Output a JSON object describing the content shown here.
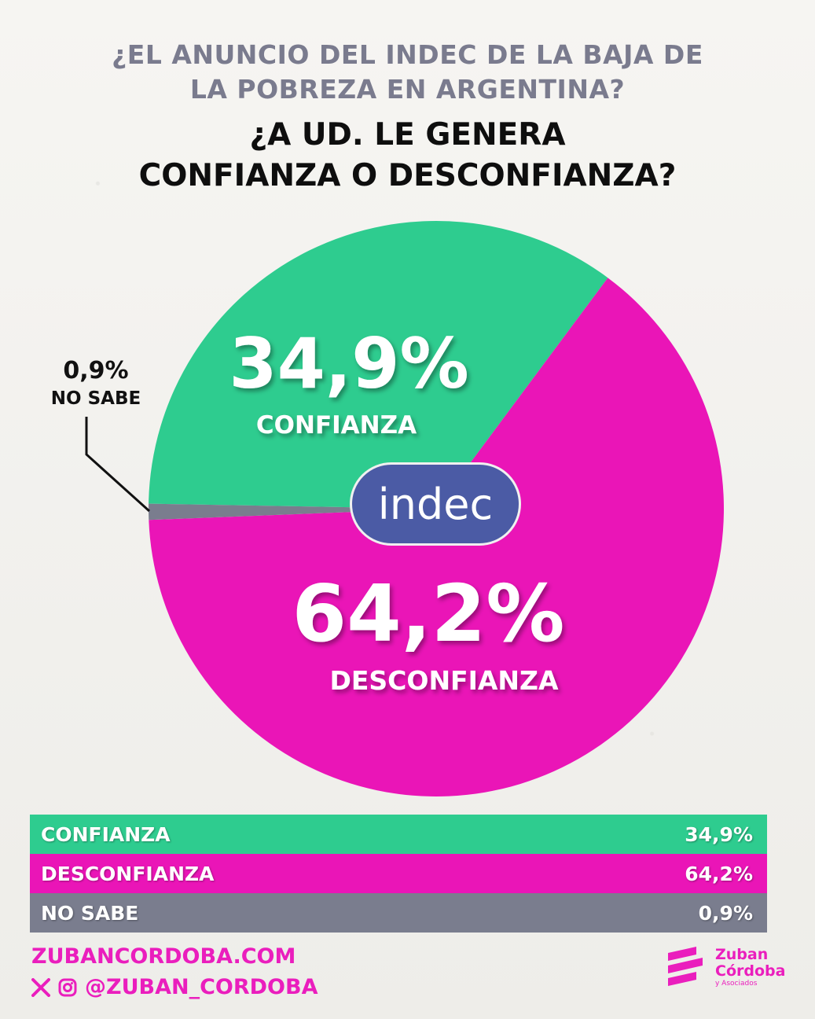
{
  "header": {
    "subtitle_line1": "¿EL ANUNCIO DEL INDEC DE LA BAJA DE",
    "subtitle_line2": "LA POBREZA EN ARGENTINA?",
    "title_line1": "¿A UD. LE GENERA",
    "title_line2": "CONFIANZA O DESCONFIANZA?"
  },
  "logo": {
    "text": "indec",
    "icon": "indec-logo"
  },
  "chart_data": {
    "type": "pie",
    "title": "",
    "slices": [
      {
        "label": "CONFIANZA",
        "value": 34.9,
        "display": "34,9%",
        "color": "#2ecc8f"
      },
      {
        "label": "DESCONFIANZA",
        "value": 64.2,
        "display": "64,2%",
        "color": "#ea15b7"
      },
      {
        "label": "NO SABE",
        "value": 0.9,
        "display": "0,9%",
        "color": "#7a7d8e"
      }
    ],
    "legend": "bottom"
  },
  "footer": {
    "url": "ZUBANCORDOBA.COM",
    "handle": "@ZUBAN_CORDOBA",
    "social_icons": [
      "x-icon",
      "instagram-icon"
    ],
    "brand_line1": "Zuban",
    "brand_line2": "Córdoba",
    "brand_line3": "y Asociados",
    "brand_icon": "zuban-cordoba-logo",
    "brand_color": "#ea1ebd"
  }
}
